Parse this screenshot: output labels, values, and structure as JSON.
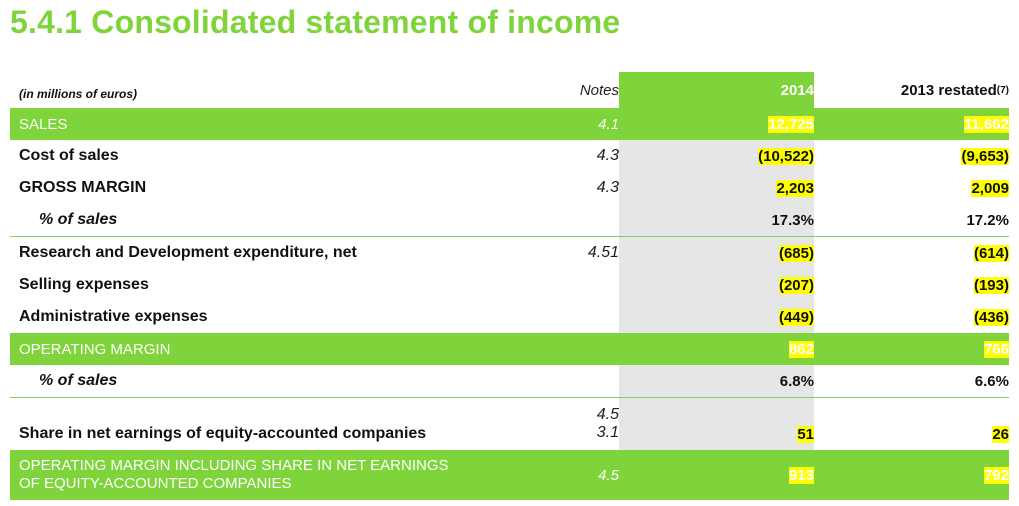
{
  "title": "5.4.1 Consolidated statement of income",
  "header": {
    "units": "(in millions of euros)",
    "notes": "Notes",
    "col_2014": "2014",
    "col_2013": "2013 restated",
    "col_2013_sup": "(7)"
  },
  "rows": [
    {
      "label": "SALES",
      "note": "4.1",
      "v2014": "12,725",
      "v2013": "11,662"
    },
    {
      "label": "Cost of sales",
      "note": "4.3",
      "v2014": "(10,522)",
      "v2013": "(9,653)"
    },
    {
      "label": "GROSS MARGIN",
      "note": "4.3",
      "v2014": "2,203",
      "v2013": "2,009"
    },
    {
      "label": "% of sales",
      "note": "",
      "v2014": "17.3%",
      "v2013": "17.2%"
    },
    {
      "label": "Research and Development expenditure, net",
      "note": "4.51",
      "v2014": "(685)",
      "v2013": "(614)"
    },
    {
      "label": "Selling expenses",
      "note": "",
      "v2014": "(207)",
      "v2013": "(193)"
    },
    {
      "label": "Administrative expenses",
      "note": "",
      "v2014": "(449)",
      "v2013": "(436)"
    },
    {
      "label": "OPERATING MARGIN",
      "note": "",
      "v2014": "862",
      "v2013": "766"
    },
    {
      "label": "% of sales",
      "note": "",
      "v2014": "6.8%",
      "v2013": "6.6%"
    },
    {
      "label": "Share in net earnings of equity-accounted companies",
      "note_a": "4.5",
      "note_b": "3.1",
      "v2014": "51",
      "v2013": "26"
    },
    {
      "label_line1": "OPERATING MARGIN INCLUDING SHARE IN NET EARNINGS",
      "label_line2": "OF EQUITY-ACCOUNTED COMPANIES",
      "note": "4.5",
      "v2014": "913",
      "v2013": "792"
    }
  ],
  "colors": {
    "accent_green": "#7ed43a",
    "highlight": "#ffff00",
    "shade": "#e6e6e6"
  }
}
